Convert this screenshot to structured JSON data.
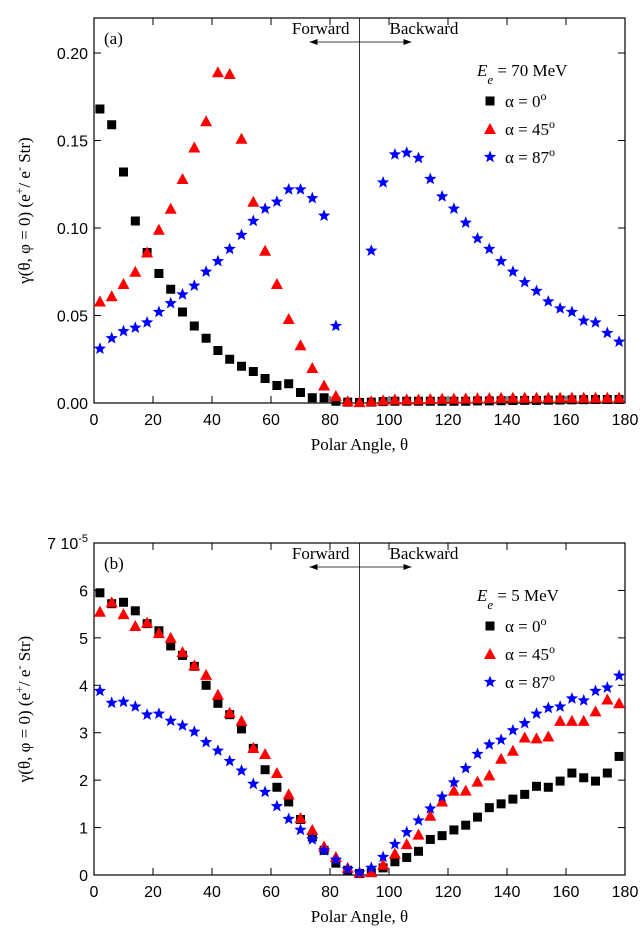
{
  "chart_data": [
    {
      "type": "scatter",
      "panel_label": "(a)",
      "legend_title": {
        "var": "E",
        "sub": "e",
        "rest": " = 70 MeV"
      },
      "forward": "Forward",
      "backward": "Backward",
      "vline": 90,
      "xlabel": "Polar Angle, θ",
      "ylabel": [
        {
          "text": "γ(θ, φ = 0) (e"
        },
        {
          "text": "+",
          "sup": true
        },
        {
          "text": "/ e"
        },
        {
          "text": "-",
          "sup": true
        },
        {
          "text": " Str)"
        }
      ],
      "xlim": [
        0,
        180
      ],
      "xticks": [
        0,
        20,
        40,
        60,
        80,
        100,
        120,
        140,
        160,
        180
      ],
      "ylim": [
        0,
        0.22
      ],
      "yticks": [
        {
          "value": 0,
          "label": "0.00"
        },
        {
          "value": 0.05,
          "label": "0.05"
        },
        {
          "value": 0.1,
          "label": "0.10"
        },
        {
          "value": 0.15,
          "label": "0.15"
        },
        {
          "value": 0.2,
          "label": "0.20"
        }
      ],
      "x": [
        2,
        6,
        10,
        14,
        18,
        22,
        26,
        30,
        34,
        38,
        42,
        46,
        50,
        54,
        58,
        62,
        66,
        70,
        74,
        78,
        82,
        86,
        90,
        94,
        98,
        102,
        106,
        110,
        114,
        118,
        122,
        126,
        130,
        134,
        138,
        142,
        146,
        150,
        154,
        158,
        162,
        166,
        170,
        174,
        178
      ],
      "series": [
        {
          "name": "α = 0",
          "name_sup": "o",
          "color": "#000000",
          "marker": "square",
          "values": [
            0.168,
            0.159,
            0.132,
            0.104,
            0.086,
            0.074,
            0.065,
            0.052,
            0.044,
            0.037,
            0.03,
            0.025,
            0.021,
            0.018,
            0.014,
            0.01,
            0.011,
            0.006,
            0.003,
            0.003,
            0.001,
            0.0005,
            0.0003,
            0.0005,
            0.0008,
            0.001,
            0.001,
            0.001,
            0.001,
            0.001,
            0.001,
            0.001,
            0.0012,
            0.0012,
            0.0013,
            0.0014,
            0.0015,
            0.0015,
            0.0016,
            0.0017,
            0.0018,
            0.0019,
            0.002,
            0.002,
            0.002
          ]
        },
        {
          "name": "α = 45",
          "name_sup": "o",
          "color": "#ff0000",
          "marker": "triangle",
          "values": [
            0.058,
            0.061,
            0.068,
            0.075,
            0.086,
            0.099,
            0.111,
            0.128,
            0.146,
            0.161,
            0.189,
            0.188,
            0.151,
            0.115,
            0.087,
            0.068,
            0.048,
            0.033,
            0.02,
            0.01,
            0.004,
            0.001,
            0.0005,
            0.001,
            0.0015,
            0.002,
            0.002,
            0.002,
            0.0022,
            0.0024,
            0.0025,
            0.0026,
            0.0027,
            0.0028,
            0.0029,
            0.003,
            0.003,
            0.003,
            0.003,
            0.003,
            0.003,
            0.003,
            0.003,
            0.003,
            0.003
          ]
        },
        {
          "name": "α = 87",
          "name_sup": "o",
          "color": "#0000ff",
          "marker": "star",
          "values": [
            0.031,
            0.037,
            0.041,
            0.043,
            0.046,
            0.052,
            0.057,
            0.062,
            0.067,
            0.075,
            0.081,
            0.088,
            0.096,
            0.104,
            0.111,
            0.115,
            0.122,
            0.122,
            0.117,
            0.107,
            0.044,
            null,
            null,
            0.087,
            0.126,
            0.142,
            0.143,
            0.14,
            0.128,
            0.118,
            0.111,
            0.103,
            0.094,
            0.088,
            0.081,
            0.075,
            0.069,
            0.064,
            0.058,
            0.054,
            0.052,
            0.047,
            0.046,
            0.04,
            0.035
          ]
        }
      ]
    },
    {
      "type": "scatter",
      "panel_label": "(b)",
      "legend_title": {
        "var": "E",
        "sub": "e",
        "rest": " = 5 MeV"
      },
      "forward": "Forward",
      "backward": "Backward",
      "vline": 90,
      "xlabel": "Polar Angle, θ",
      "ylabel": [
        {
          "text": "γ(θ, φ = 0) (e"
        },
        {
          "text": "+",
          "sup": true
        },
        {
          "text": "/ e"
        },
        {
          "text": "-",
          "sup": true
        },
        {
          "text": " Str)"
        }
      ],
      "xlim": [
        0,
        180
      ],
      "xticks": [
        0,
        20,
        40,
        60,
        80,
        100,
        120,
        140,
        160,
        180
      ],
      "ylim": [
        0,
        7
      ],
      "yticks": [
        0,
        1,
        2,
        3,
        4,
        5,
        6,
        {
          "value": 7,
          "label": "7 10",
          "sup": "-5"
        }
      ],
      "x": [
        2,
        6,
        10,
        14,
        18,
        22,
        26,
        30,
        34,
        38,
        42,
        46,
        50,
        54,
        58,
        62,
        66,
        70,
        74,
        78,
        82,
        86,
        90,
        94,
        98,
        102,
        106,
        110,
        114,
        118,
        122,
        126,
        130,
        134,
        138,
        142,
        146,
        150,
        154,
        158,
        162,
        166,
        170,
        174,
        178
      ],
      "series": [
        {
          "name": "α = 0",
          "name_sup": "o",
          "color": "#000000",
          "marker": "square",
          "values": [
            5.95,
            5.72,
            5.75,
            5.57,
            5.3,
            5.15,
            4.83,
            4.63,
            4.4,
            4.0,
            3.62,
            3.38,
            3.08,
            2.67,
            2.22,
            1.85,
            1.54,
            1.17,
            0.8,
            0.52,
            0.25,
            0.1,
            0.03,
            0.05,
            0.15,
            0.28,
            0.37,
            0.5,
            0.75,
            0.83,
            0.95,
            1.05,
            1.22,
            1.42,
            1.5,
            1.6,
            1.7,
            1.87,
            1.85,
            1.98,
            2.15,
            2.05,
            1.98,
            2.15,
            2.5
          ]
        },
        {
          "name": "α = 45",
          "name_sup": "o",
          "color": "#ff0000",
          "marker": "triangle",
          "values": [
            5.55,
            5.75,
            5.5,
            5.25,
            5.32,
            5.1,
            5.0,
            4.7,
            4.42,
            4.22,
            3.8,
            3.42,
            3.25,
            2.68,
            2.55,
            2.15,
            1.7,
            1.2,
            0.95,
            0.6,
            0.38,
            0.15,
            0.05,
            0.06,
            0.22,
            0.45,
            0.65,
            0.85,
            1.25,
            1.55,
            1.78,
            1.78,
            1.97,
            2.1,
            2.45,
            2.62,
            2.9,
            2.88,
            2.92,
            3.25,
            3.25,
            3.25,
            3.45,
            3.7,
            3.62
          ]
        },
        {
          "name": "α = 87",
          "name_sup": "o",
          "color": "#0000ff",
          "marker": "star",
          "values": [
            3.88,
            3.63,
            3.65,
            3.55,
            3.38,
            3.4,
            3.25,
            3.15,
            3.02,
            2.8,
            2.62,
            2.4,
            2.2,
            1.92,
            1.75,
            1.45,
            1.18,
            0.95,
            0.75,
            0.52,
            0.32,
            0.12,
            0.05,
            0.15,
            0.38,
            0.65,
            0.9,
            1.15,
            1.4,
            1.65,
            1.95,
            2.25,
            2.55,
            2.75,
            2.85,
            3.05,
            3.2,
            3.4,
            3.52,
            3.55,
            3.72,
            3.68,
            3.88,
            3.95,
            4.2
          ]
        }
      ]
    }
  ]
}
